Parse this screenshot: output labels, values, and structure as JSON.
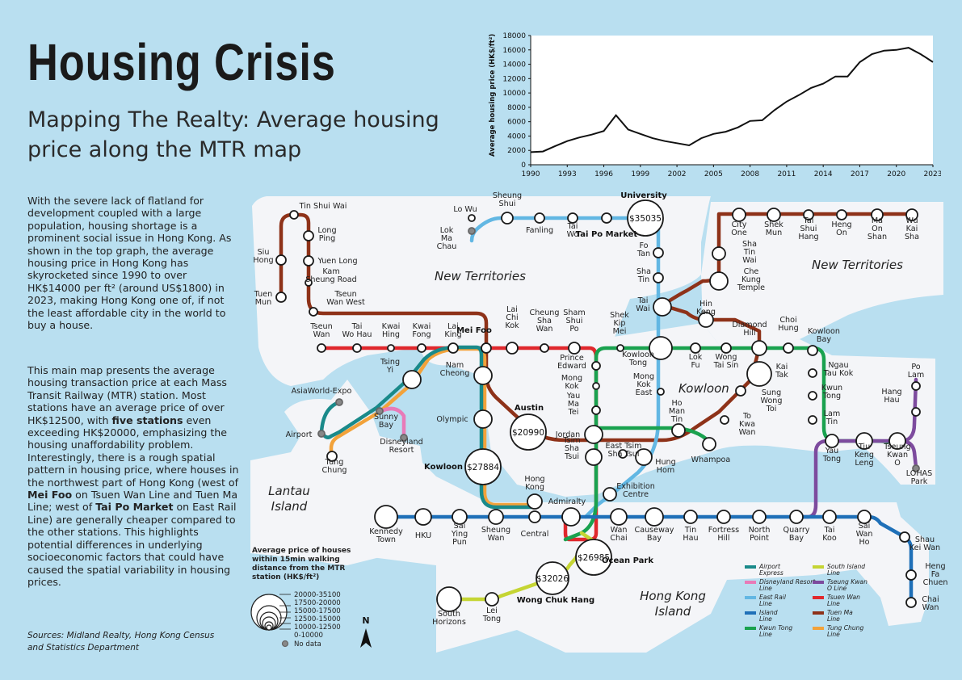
{
  "header": {
    "title": "Housing Crisis",
    "subtitle": "Mapping The Realty: Average housing price along the MTR map"
  },
  "intro": {
    "p1_a": "With the severe lack of flatland for development coupled with a large population, housing shortage is a prominent social issue in Hong Kong. As shown in the top graph, the average housing price in Hong Kong has skyrocketed since 1990 to over HK$14000 per ft² (around US$1800) in 2023, making Hong Kong one of, if not the least affordable city in the world to buy a house.",
    "p2_a": "This main map presents the average housing transaction price at each Mass Transit Railway (MTR) station. Most stations have an average price of over HK$12500, with ",
    "p2_b": "five stations",
    "p2_c": " even exceeding HK$20000, emphasizing the housing unaffordability problem. Interestingly, there is a rough spatial pattern in housing price, where houses in the northwest part of Hong Kong (west of ",
    "p2_d": "Mei Foo",
    "p2_e": " on Tsuen Wan Line and Tuen Ma Line; west of ",
    "p2_f": "Tai Po Market",
    "p2_g": " on East Rail Line) are generally cheaper compared to the other stations. This highlights potential differences in underlying socioeconomic factors that could have caused the spatial variability in housing prices."
  },
  "sources": "Sources: Midland Realty, Hong Kong Census and Statistics Department",
  "chart_data": {
    "type": "line",
    "ylabel": "Average housing price (HK$/ft²)",
    "ylim": [
      0,
      18000
    ],
    "yticks": [
      0,
      2000,
      4000,
      6000,
      8000,
      10000,
      12000,
      14000,
      16000,
      18000
    ],
    "xticks": [
      1990,
      1993,
      1996,
      1999,
      2002,
      2005,
      2008,
      2011,
      2014,
      2017,
      2020,
      2023
    ],
    "xlim": [
      1990,
      2023
    ],
    "grid": false,
    "line_color": "#111111",
    "x": [
      1990,
      1991,
      1992,
      1993,
      1994,
      1995,
      1996,
      1997,
      1998,
      1999,
      2000,
      2001,
      2002,
      2003,
      2004,
      2005,
      2006,
      2007,
      2008,
      2009,
      2010,
      2011,
      2012,
      2013,
      2014,
      2015,
      2016,
      2017,
      2018,
      2019,
      2020,
      2021,
      2022,
      2023
    ],
    "values": [
      1750,
      1850,
      2600,
      3300,
      3800,
      4200,
      4700,
      6900,
      4900,
      4300,
      3700,
      3300,
      3000,
      2700,
      3700,
      4300,
      4600,
      5200,
      6100,
      6200,
      7600,
      8800,
      9700,
      10700,
      11300,
      12300,
      12300,
      14300,
      15400,
      15900,
      16000,
      16300,
      15400,
      14300
    ]
  },
  "map": {
    "regions": {
      "nt_west": "New Territories",
      "nt_east": "New Territories",
      "kowloon": "Kowloon",
      "lantau": "Lantau Island",
      "hk_island": "Hong Kong Island"
    },
    "price_labels": {
      "university": "$35035",
      "austin": "$20990",
      "kowloon": "$27884",
      "ocean_park": "$26985",
      "wong_chuk_hang": "$32026"
    },
    "bold_stations": {
      "university": "University",
      "mei_foo": "Mei Foo",
      "tai_po_market": "Tai Po Market",
      "austin": "Austin",
      "kowloon": "Kowloon",
      "ocean_park": "Ocean Park",
      "wong_chuk_hang": "Wong Chuk Hang"
    },
    "line_colors": {
      "airport_express": "#1a8a8a",
      "disneyland": "#e87bb8",
      "east_rail": "#62b7e3",
      "island": "#1f70b8",
      "kwun_tong": "#1aa24f",
      "south_island": "#c5d534",
      "tsuen_wan": "#e0282d",
      "tuen_ma": "#8e3219",
      "tung_chung": "#f2a23a",
      "tseung_kwan_o": "#7d4b9e"
    }
  },
  "size_legend": {
    "title": "Average price of houses within 15min walking distance from the MTR station (HK$/ft²)",
    "classes": [
      "20000-35100",
      "17500-20000",
      "15000-17500",
      "12500-15000",
      "10000-12500",
      "0-10000"
    ],
    "no_data": "No data"
  },
  "line_legend": [
    {
      "name": "Airport Express",
      "color": "#1a8a8a"
    },
    {
      "name": "Disneyland Resort Line",
      "color": "#e87bb8"
    },
    {
      "name": "East Rail Line",
      "color": "#62b7e3"
    },
    {
      "name": "Island Line",
      "color": "#1f70b8"
    },
    {
      "name": "Kwun Tong Line",
      "color": "#1aa24f"
    },
    {
      "name": "South Island Line",
      "color": "#c5d534"
    },
    {
      "name": "Tseung Kwan O Line",
      "color": "#7d4b9e"
    },
    {
      "name": "Tsuen Wan Line",
      "color": "#e0282d"
    },
    {
      "name": "Tuen Ma Line",
      "color": "#8e3219"
    },
    {
      "name": "Tung Chung Line",
      "color": "#f2a23a"
    }
  ],
  "north_arrow": "N",
  "stations": [
    [
      "Tuen Mun",
      "tuen_mun"
    ],
    [
      "Siu Hong",
      "siu_hong"
    ],
    [
      "Tin Shui Wai",
      "tin_shui_wai"
    ],
    [
      "Long Ping",
      "long_ping"
    ],
    [
      "Yuen Long",
      "yuen_long"
    ],
    [
      "Kam Sheung Road",
      "kam_sheung_road"
    ],
    [
      "Tseun Wan West",
      "tsuen_wan_west"
    ],
    [
      "Tseun Wan",
      "tsuen_wan"
    ],
    [
      "Tai Wo Hau",
      "tai_wo_hau"
    ],
    [
      "Kwai Hing",
      "kwai_hing"
    ],
    [
      "Kwai Fong",
      "kwai_fong"
    ],
    [
      "Lai King",
      "lai_king"
    ],
    [
      "Lai Chi Kok",
      "lai_chi_kok"
    ],
    [
      "Cheung Sha Wan",
      "cheung_sha_wan"
    ],
    [
      "Sham Shui Po",
      "sham_shui_po"
    ],
    [
      "Prince Edward",
      "prince_edward"
    ],
    [
      "Mong Kok",
      "mong_kok"
    ],
    [
      "Yau Ma Tei",
      "yau_ma_tei"
    ],
    [
      "Jordan",
      "jordan"
    ],
    [
      "Tsim Sha Tsui",
      "tsim_sha_tsui"
    ],
    [
      "East Tsim Sha Tsui",
      "east_tsim_sha_tsui"
    ],
    [
      "Hung Hom",
      "hung_hom"
    ],
    [
      "Lo Wu",
      "lo_wu"
    ],
    [
      "Lok Ma Chau",
      "lok_ma_chau"
    ],
    [
      "Sheung Shui",
      "sheung_shui"
    ],
    [
      "Fanling",
      "fanling"
    ],
    [
      "Tai Wo",
      "tai_wo"
    ],
    [
      "Fo Tan",
      "fo_tan"
    ],
    [
      "Sha Tin",
      "sha_tin"
    ],
    [
      "Tai Wai",
      "tai_wai"
    ],
    [
      "Kowloon Tong",
      "kowloon_tong"
    ],
    [
      "Mong Kok East",
      "mong_kok_east"
    ],
    [
      "Shek Kip Mei",
      "shek_kip_mei"
    ],
    [
      "Lok Fu",
      "lok_fu"
    ],
    [
      "Wong Tai Sin",
      "wong_tai_sin"
    ],
    [
      "Diamond Hill",
      "diamond_hill"
    ],
    [
      "Choi Hung",
      "choi_hung"
    ],
    [
      "Kowloon Bay",
      "kowloon_bay"
    ],
    [
      "Ngau Tau Kok",
      "ngau_tau_kok"
    ],
    [
      "Kwun Tong",
      "kwun_tong"
    ],
    [
      "Lam Tin",
      "lam_tin"
    ],
    [
      "Yau Tong",
      "yau_tong"
    ],
    [
      "Tiu Keng Leng",
      "tiu_keng_leng"
    ],
    [
      "Tseung Kwan O",
      "tseung_kwan_o"
    ],
    [
      "LOHAS Park",
      "lohas_park"
    ],
    [
      "Hang Hau",
      "hang_hau"
    ],
    [
      "Po Lam",
      "po_lam"
    ],
    [
      "Hin Keng",
      "hin_keng"
    ],
    [
      "Kai Tak",
      "kai_tak"
    ],
    [
      "Sung Wong Toi",
      "sung_wong_toi"
    ],
    [
      "To Kwa Wan",
      "to_kwa_wan"
    ],
    [
      "Ho Man Tin",
      "ho_man_tin"
    ],
    [
      "Whampoa",
      "whampoa"
    ],
    [
      "City One",
      "city_one"
    ],
    [
      "Shek Mun",
      "shek_mun"
    ],
    [
      "Tai Shui Hang",
      "tai_shui_hang"
    ],
    [
      "Heng On",
      "heng_on"
    ],
    [
      "Ma On Shan",
      "ma_on_shan"
    ],
    [
      "Wu Kai Sha",
      "wu_kai_sha"
    ],
    [
      "Sha Tin Wai",
      "sha_tin_wai"
    ],
    [
      "Che Kung Temple",
      "che_kung_temple"
    ],
    [
      "Nam Cheong",
      "nam_cheong"
    ],
    [
      "Olympic",
      "olympic"
    ],
    [
      "Tsing Yi",
      "tsing_yi"
    ],
    [
      "AsiaWorld-Expo",
      "asiaworld_expo"
    ],
    [
      "Airport",
      "airport"
    ],
    [
      "Sunny Bay",
      "sunny_bay"
    ],
    [
      "Disneyland Resort",
      "disneyland_resort"
    ],
    [
      "Tung Chung",
      "tung_chung"
    ],
    [
      "Hong Kong",
      "hong_kong"
    ],
    [
      "Admiralty",
      "admiralty"
    ],
    [
      "Exhibition Centre",
      "exhibition_centre"
    ],
    [
      "Kennedy Town",
      "kennedy_town"
    ],
    [
      "HKU",
      "hku"
    ],
    [
      "Sai Ying Pun",
      "sai_ying_pun"
    ],
    [
      "Sheung Wan",
      "sheung_wan"
    ],
    [
      "Central",
      "central"
    ],
    [
      "Wan Chai",
      "wan_chai"
    ],
    [
      "Causeway Bay",
      "causeway_bay"
    ],
    [
      "Tin Hau",
      "tin_hau"
    ],
    [
      "Fortress Hill",
      "fortress_hill"
    ],
    [
      "North Point",
      "north_point"
    ],
    [
      "Quarry Bay",
      "quarry_bay"
    ],
    [
      "Tai Koo",
      "tai_koo"
    ],
    [
      "Sai Wan Ho",
      "sai_wan_ho"
    ],
    [
      "Shau Kei Wan",
      "shau_kei_wan"
    ],
    [
      "Heng Fa Chuen",
      "heng_fa_chuen"
    ],
    [
      "Chai Wan",
      "chai_wan"
    ],
    [
      "South Horizons",
      "south_horizons"
    ],
    [
      "Lei Tong",
      "lei_tong"
    ]
  ]
}
